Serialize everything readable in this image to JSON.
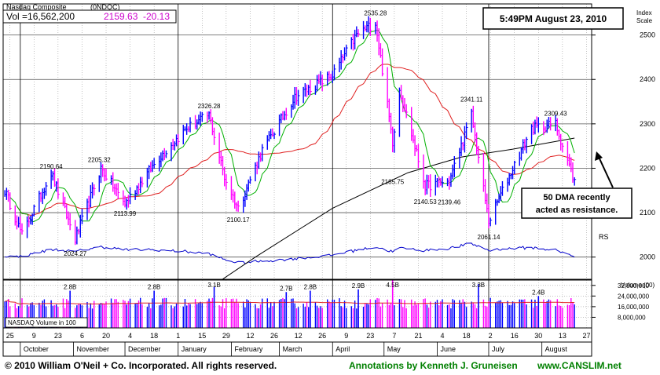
{
  "header": {
    "index_name": "Nasdaq Composite",
    "symbol": "(0NDQC)",
    "vol_label": "Vol =16,562,200",
    "last_price": "2159.63",
    "change": "-20.13"
  },
  "timestamp": "5:49PM August 23, 2010",
  "annotation_box": {
    "line1": "50 DMA recently",
    "line2": "acted as resistance."
  },
  "price_axis": {
    "title_line1": "Index",
    "title_line2": "Scale",
    "ticks": [
      "2500",
      "2400",
      "2300",
      "2200",
      "2100",
      "2000"
    ]
  },
  "volume_axis": {
    "title": "Volume (00)",
    "ticks": [
      "32,000,000",
      "24,000,000",
      "16,000,000",
      "8,000,000"
    ]
  },
  "volume_legend": "NASDAQ Volume in 100",
  "rs_label": "RS",
  "x_axis": {
    "day_ticks": [
      "25",
      "9",
      "23",
      "6",
      "20",
      "4",
      "18",
      "1",
      "15",
      "29",
      "12",
      "26",
      "12",
      "26",
      "9",
      "23",
      "7",
      "21",
      "4",
      "18",
      "2",
      "16",
      "30",
      "13",
      "27"
    ],
    "months": [
      "October",
      "November",
      "December",
      "January",
      "February",
      "March",
      "April",
      "May",
      "June",
      "July",
      "August"
    ]
  },
  "footer": {
    "copyright": "© 2010 William O'Neil + Co. Incorporated. All rights reserved.",
    "annotations": "Annotations by Kenneth J. Gruneisen",
    "website": "www.CANSLIM.net"
  },
  "colors": {
    "up_bar": "#0000ff",
    "down_bar": "#ff00ff",
    "ma50": "#00b000",
    "ma200": "#000000",
    "ma_short": "#e02020",
    "rs_line": "#0000cc",
    "grid": "#a0a0a0",
    "footer_green": "#008000"
  },
  "chart_data": {
    "type": "line",
    "title": "Nasdaq Composite",
    "ylabel": "Index Scale",
    "ylim": [
      1950,
      2570
    ],
    "x_range": [
      "2009-09-21",
      "2010-08-30"
    ],
    "price_labels": [
      {
        "date": "2009-10-19",
        "value": 2190.64,
        "text": "2190.64"
      },
      {
        "date": "2009-11-02",
        "value": 2024.27,
        "text": "2024.27"
      },
      {
        "date": "2009-11-16",
        "value": 2205.32,
        "text": "2205.32"
      },
      {
        "date": "2009-12-01",
        "value": 2113.99,
        "text": "2113.99"
      },
      {
        "date": "2010-01-19",
        "value": 2326.28,
        "text": "2326.28"
      },
      {
        "date": "2010-02-05",
        "value": 2100.17,
        "text": "2100.17"
      },
      {
        "date": "2010-04-26",
        "value": 2535.28,
        "text": "2535.28"
      },
      {
        "date": "2010-05-06",
        "value": 2185.75,
        "text": "2185.75"
      },
      {
        "date": "2010-05-25",
        "value": 2140.53,
        "text": "2140.53"
      },
      {
        "date": "2010-06-08",
        "value": 2139.46,
        "text": "2139.46"
      },
      {
        "date": "2010-06-21",
        "value": 2341.11,
        "text": "2341.11"
      },
      {
        "date": "2010-07-01",
        "value": 2061.14,
        "text": "2061.14"
      },
      {
        "date": "2010-08-09",
        "value": 2309.43,
        "text": "2309.43"
      }
    ],
    "price_path": [
      {
        "date": "2009-09-22",
        "value": 2150
      },
      {
        "date": "2009-10-02",
        "value": 2050
      },
      {
        "date": "2009-10-19",
        "value": 2190
      },
      {
        "date": "2009-11-02",
        "value": 2040
      },
      {
        "date": "2009-11-17",
        "value": 2200
      },
      {
        "date": "2009-12-01",
        "value": 2120
      },
      {
        "date": "2009-12-20",
        "value": 2220
      },
      {
        "date": "2010-01-06",
        "value": 2290
      },
      {
        "date": "2010-01-19",
        "value": 2320
      },
      {
        "date": "2010-01-28",
        "value": 2180
      },
      {
        "date": "2010-02-05",
        "value": 2110
      },
      {
        "date": "2010-02-19",
        "value": 2240
      },
      {
        "date": "2010-03-10",
        "value": 2360
      },
      {
        "date": "2010-04-01",
        "value": 2410
      },
      {
        "date": "2010-04-15",
        "value": 2500
      },
      {
        "date": "2010-04-26",
        "value": 2530
      },
      {
        "date": "2010-05-06",
        "value": 2260
      },
      {
        "date": "2010-05-10",
        "value": 2380
      },
      {
        "date": "2010-05-25",
        "value": 2160
      },
      {
        "date": "2010-06-08",
        "value": 2170
      },
      {
        "date": "2010-06-21",
        "value": 2320
      },
      {
        "date": "2010-07-01",
        "value": 2080
      },
      {
        "date": "2010-07-15",
        "value": 2200
      },
      {
        "date": "2010-07-26",
        "value": 2290
      },
      {
        "date": "2010-08-09",
        "value": 2300
      },
      {
        "date": "2010-08-20",
        "value": 2170
      }
    ],
    "ma200_path": [
      {
        "date": "2009-12-31",
        "value": 1880
      },
      {
        "date": "2010-02-15",
        "value": 2000
      },
      {
        "date": "2010-04-01",
        "value": 2110
      },
      {
        "date": "2010-05-15",
        "value": 2190
      },
      {
        "date": "2010-06-15",
        "value": 2225
      },
      {
        "date": "2010-07-15",
        "value": 2243
      },
      {
        "date": "2010-08-20",
        "value": 2268
      }
    ],
    "volume_labels": [
      {
        "date": "2009-10-30",
        "text": "2.8B"
      },
      {
        "date": "2009-12-18",
        "text": "2.8B"
      },
      {
        "date": "2010-01-22",
        "text": "3.1B"
      },
      {
        "date": "2010-03-05",
        "text": "2.7B"
      },
      {
        "date": "2010-03-19",
        "text": "2.8B"
      },
      {
        "date": "2010-04-16",
        "text": "2.9B"
      },
      {
        "date": "2010-05-06",
        "text": "4.5B"
      },
      {
        "date": "2010-06-25",
        "text": "3.3B"
      },
      {
        "date": "2010-07-30",
        "text": "2.4B"
      }
    ],
    "volume_ylim": [
      0,
      36000000
    ],
    "grid": true
  }
}
